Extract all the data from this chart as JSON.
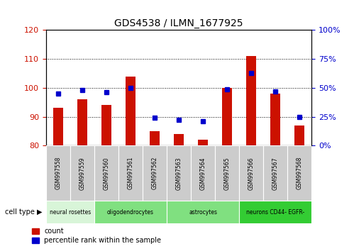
{
  "title": "GDS4538 / ILMN_1677925",
  "samples": [
    "GSM997558",
    "GSM997559",
    "GSM997560",
    "GSM997561",
    "GSM997562",
    "GSM997563",
    "GSM997564",
    "GSM997565",
    "GSM997566",
    "GSM997567",
    "GSM997568"
  ],
  "counts": [
    93,
    96,
    94,
    104,
    85,
    84,
    82,
    100,
    111,
    98,
    87
  ],
  "percentiles": [
    45,
    48,
    46,
    50,
    24,
    22,
    21,
    49,
    63,
    47,
    25
  ],
  "ylim_left": [
    80,
    120
  ],
  "ylim_right": [
    0,
    100
  ],
  "yticks_left": [
    80,
    90,
    100,
    110,
    120
  ],
  "yticks_right": [
    0,
    25,
    50,
    75,
    100
  ],
  "cell_type_groups": [
    {
      "label": "neural rosettes",
      "start": 0,
      "end": 2,
      "color": "#d8f5d8"
    },
    {
      "label": "oligodendrocytes",
      "start": 2,
      "end": 5,
      "color": "#80e080"
    },
    {
      "label": "astrocytes",
      "start": 5,
      "end": 8,
      "color": "#80e080"
    },
    {
      "label": "neurons CD44- EGFR-",
      "start": 8,
      "end": 11,
      "color": "#33cc33"
    }
  ],
  "bar_color": "#cc1100",
  "dot_color": "#0000cc",
  "cell_type_label": "cell type",
  "legend_count": "count",
  "legend_percentile": "percentile rank within the sample",
  "left_tick_color": "#cc1100",
  "right_tick_color": "#0000cc",
  "background_color": "#ffffff",
  "tick_label_bg": "#cccccc",
  "bar_width": 0.4
}
